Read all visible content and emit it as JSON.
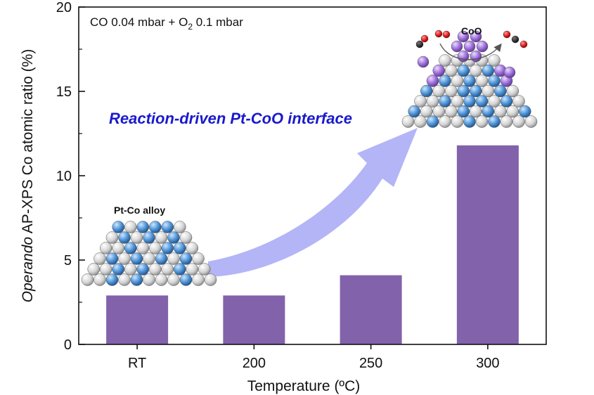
{
  "chart_data": {
    "type": "bar",
    "categories": [
      "RT",
      "200",
      "250",
      "300"
    ],
    "values": [
      2.9,
      2.9,
      4.1,
      11.8
    ],
    "ylim": [
      0,
      20
    ],
    "yticks": [
      0,
      5,
      10,
      15,
      20
    ],
    "xlabel": "Temperature (ºC)",
    "ylabel_italic": "Operando",
    "ylabel_rest": " AP-XPS Co atomic ratio (%)",
    "bar_color": "#8262ab",
    "annotations": {
      "condition": {
        "prefix": "CO 0.04 mbar + O",
        "subscript": "2",
        "suffix": " 0.1 mbar"
      },
      "headline": "Reaction-driven Pt-CoO interface",
      "left_cluster_label": "Pt-Co alloy",
      "right_cluster_label": "CoO"
    }
  },
  "colors": {
    "arrow": "#b3b5f7",
    "pt_atom": "#dcdcdc",
    "co_atom": "#4f95d8",
    "coo_atom": "#9e6fdb",
    "oxygen": "#e01010",
    "carbon": "#111111",
    "headline": "#1a1acc"
  }
}
